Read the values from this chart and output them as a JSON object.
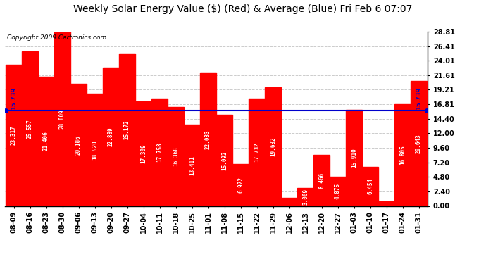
{
  "title": "Weekly Solar Energy Value ($) (Red) & Average (Blue) Fri Feb 6 07:07",
  "copyright": "Copyright 2009 Cartronics.com",
  "categories": [
    "08-09",
    "08-16",
    "08-23",
    "08-30",
    "09-06",
    "09-13",
    "09-20",
    "09-27",
    "10-04",
    "10-11",
    "10-18",
    "10-25",
    "11-01",
    "11-08",
    "11-15",
    "11-22",
    "11-29",
    "12-06",
    "12-13",
    "12-20",
    "12-27",
    "01-03",
    "01-10",
    "01-17",
    "01-24",
    "01-31"
  ],
  "values": [
    23.317,
    25.557,
    21.406,
    28.809,
    20.186,
    18.52,
    22.889,
    25.172,
    17.309,
    17.758,
    16.368,
    13.411,
    22.033,
    15.092,
    6.922,
    17.732,
    19.632,
    1.369,
    3.009,
    8.466,
    4.875,
    15.91,
    6.454,
    0.772,
    16.805,
    20.643
  ],
  "average": 15.739,
  "bar_color": "#ff0000",
  "avg_color": "#0000cc",
  "bg_color": "#ffffff",
  "plot_bg_color": "#ffffff",
  "grid_color": "#cccccc",
  "title_color": "#000000",
  "copyright_color": "#000000",
  "ylim": [
    0,
    28.81
  ],
  "yticks": [
    0.0,
    2.4,
    4.8,
    7.2,
    9.6,
    12.0,
    14.4,
    16.81,
    19.21,
    21.61,
    24.01,
    26.41,
    28.81
  ],
  "title_fontsize": 10,
  "copyright_fontsize": 6.5,
  "bar_label_fontsize": 5.5,
  "tick_fontsize": 7,
  "avg_label": "15.739",
  "avg_label_fontsize": 6
}
